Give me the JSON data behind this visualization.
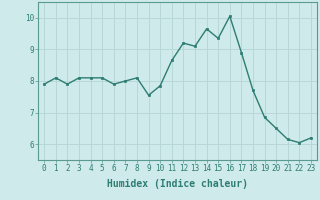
{
  "x": [
    0,
    1,
    2,
    3,
    4,
    5,
    6,
    7,
    8,
    9,
    10,
    11,
    12,
    13,
    14,
    15,
    16,
    17,
    18,
    19,
    20,
    21,
    22,
    23
  ],
  "y": [
    7.9,
    8.1,
    7.9,
    8.1,
    8.1,
    8.1,
    7.9,
    8.0,
    8.1,
    7.55,
    7.85,
    8.65,
    9.2,
    9.1,
    9.65,
    9.35,
    10.05,
    8.9,
    7.7,
    6.85,
    6.5,
    6.15,
    6.05,
    6.2
  ],
  "line_color": "#2e7d72",
  "marker": "s",
  "marker_size": 1.8,
  "bg_color": "#ceeaea",
  "grid_color": "#b8d8d8",
  "xlabel": "Humidex (Indice chaleur)",
  "ylim": [
    5.5,
    10.5
  ],
  "xlim": [
    -0.5,
    23.5
  ],
  "yticks": [
    6,
    7,
    8,
    9,
    10
  ],
  "xticks": [
    0,
    1,
    2,
    3,
    4,
    5,
    6,
    7,
    8,
    9,
    10,
    11,
    12,
    13,
    14,
    15,
    16,
    17,
    18,
    19,
    20,
    21,
    22,
    23
  ],
  "tick_label_size": 5.5,
  "xlabel_size": 7.0,
  "line_width": 1.0,
  "tick_color": "#2e7d72",
  "axis_color": "#2e7d72",
  "spine_color": "#5a9a90"
}
